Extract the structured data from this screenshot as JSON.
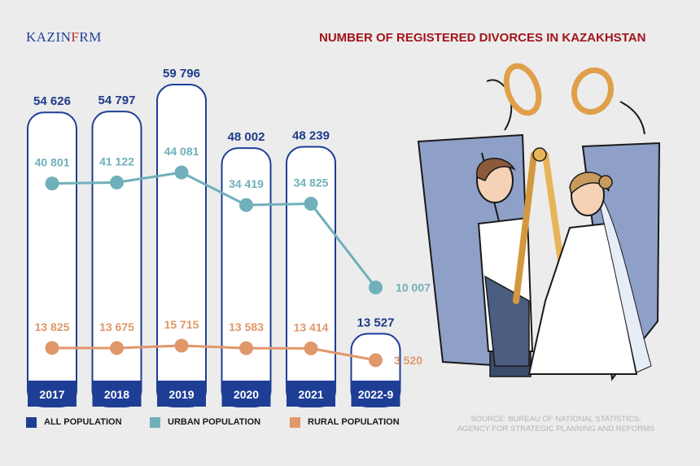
{
  "header": {
    "logo_part1": "KAZIN",
    "logo_part2": "F",
    "logo_part3": "RM",
    "title": "NUMBER OF REGISTERED DIVORCES IN KAZAKHSTAN"
  },
  "colors": {
    "all": "#1e3e96",
    "urban": "#6fb0ba",
    "rural": "#e0976a",
    "title": "#a3141c"
  },
  "chart_data": {
    "type": "bar",
    "title": "NUMBER OF REGISTERED DIVORCES IN KAZAKHSTAN",
    "categories": [
      "2017",
      "2018",
      "2019",
      "2020",
      "2021",
      "2022-9"
    ],
    "series": [
      {
        "name": "ALL POPULATION",
        "type": "bar",
        "values": [
          54626,
          54797,
          59796,
          48002,
          48239,
          13527
        ],
        "labels": [
          "54 626",
          "54 797",
          "59 796",
          "48 002",
          "48 239",
          "13 527"
        ]
      },
      {
        "name": "URBAN POPULATION",
        "type": "line",
        "values": [
          40801,
          41122,
          44081,
          34419,
          34825,
          10007
        ],
        "labels": [
          "40 801",
          "41 122",
          "44 081",
          "34 419",
          "34 825",
          "10 007"
        ]
      },
      {
        "name": "RURAL POPULATION",
        "type": "line",
        "values": [
          13825,
          13675,
          15715,
          13583,
          13414,
          3520
        ],
        "labels": [
          "13 825",
          "13 675",
          "15 715",
          "13 583",
          "13 414",
          "3 520"
        ]
      }
    ],
    "legend_position": "bottom",
    "grid": false
  },
  "source": {
    "line1": "SOURCE: BUREAU OF NATIONAL STATISTICS,",
    "line2": "AGENCY FOR STRATEGIC PLANNING AND REFORMS"
  }
}
